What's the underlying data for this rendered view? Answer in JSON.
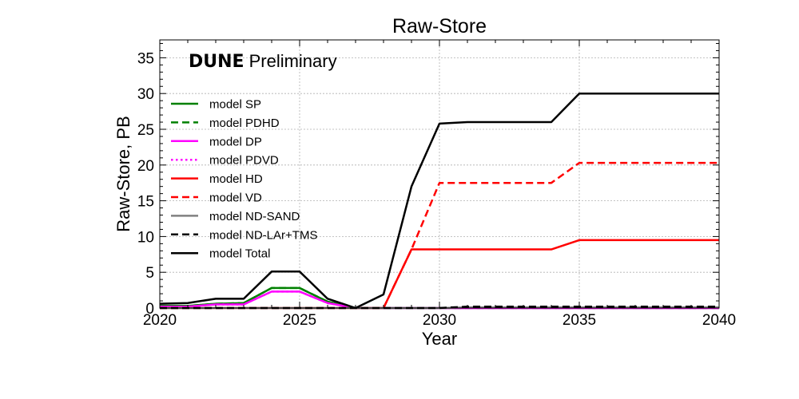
{
  "chart_data": {
    "type": "line",
    "title": "Raw-Store",
    "xlabel": "Year",
    "ylabel": "Raw-Store, PB",
    "watermark_bold": "DUNE",
    "watermark_text": "Preliminary",
    "xlim": [
      2020,
      2040
    ],
    "ylim": [
      0,
      37.5
    ],
    "x_ticks": [
      2020,
      2025,
      2030,
      2035,
      2040
    ],
    "y_ticks": [
      0,
      5,
      10,
      15,
      20,
      25,
      30,
      35
    ],
    "grid": true,
    "legend_position": "upper-left",
    "x": [
      2020,
      2021,
      2022,
      2023,
      2024,
      2025,
      2026,
      2027,
      2028,
      2029,
      2030,
      2031,
      2032,
      2033,
      2034,
      2035,
      2036,
      2037,
      2038,
      2039,
      2040
    ],
    "series": [
      {
        "name": "model SP",
        "color": "#008000",
        "dash": "solid",
        "values": [
          0.3,
          0.3,
          0.6,
          0.7,
          2.8,
          2.8,
          0.9,
          0,
          0,
          0,
          0,
          0,
          0,
          0,
          0,
          0,
          0,
          0,
          0,
          0,
          0
        ]
      },
      {
        "name": "model PDHD",
        "color": "#008000",
        "dash": "dashed",
        "values": [
          0.3,
          0.3,
          0.6,
          0.7,
          2.8,
          2.8,
          0.9,
          0,
          0,
          0,
          0,
          0,
          0,
          0,
          0,
          0,
          0,
          0,
          0,
          0,
          0
        ]
      },
      {
        "name": "model DP",
        "color": "#ff00ff",
        "dash": "solid",
        "values": [
          0.2,
          0.2,
          0.5,
          0.5,
          2.3,
          2.3,
          0.7,
          0,
          0,
          0,
          0,
          0,
          0,
          0,
          0,
          0,
          0,
          0,
          0,
          0,
          0
        ]
      },
      {
        "name": "model PDVD",
        "color": "#ff00ff",
        "dash": "dotted",
        "values": [
          0.2,
          0.2,
          0.5,
          0.5,
          2.3,
          2.3,
          0.7,
          0,
          0,
          0,
          0,
          0,
          0,
          0,
          0,
          0,
          0,
          0,
          0,
          0,
          0
        ]
      },
      {
        "name": "model HD",
        "color": "#ff0000",
        "dash": "solid",
        "values": [
          0,
          0,
          0,
          0,
          0,
          0,
          0,
          0,
          0,
          8.2,
          8.2,
          8.2,
          8.2,
          8.2,
          8.2,
          9.5,
          9.5,
          9.5,
          9.5,
          9.5,
          9.5
        ]
      },
      {
        "name": "model VD",
        "color": "#ff0000",
        "dash": "dashed",
        "values": [
          0,
          0,
          0,
          0,
          0,
          0,
          0,
          0,
          0,
          8.2,
          17.5,
          17.5,
          17.5,
          17.5,
          17.5,
          20.3,
          20.3,
          20.3,
          20.3,
          20.3,
          20.3
        ]
      },
      {
        "name": "model ND-SAND",
        "color": "#808080",
        "dash": "solid",
        "values": [
          0,
          0,
          0,
          0,
          0,
          0,
          0,
          0,
          0,
          0,
          0,
          0.1,
          0.1,
          0.1,
          0.1,
          0.1,
          0.1,
          0.1,
          0.1,
          0.1,
          0.1
        ]
      },
      {
        "name": "model ND-LAr+TMS",
        "color": "#000000",
        "dash": "dashed",
        "values": [
          0,
          0,
          0,
          0,
          0,
          0,
          0,
          0,
          0,
          0,
          0,
          0.2,
          0.2,
          0.2,
          0.2,
          0.2,
          0.2,
          0.2,
          0.2,
          0.2,
          0.2
        ]
      },
      {
        "name": "model Total",
        "color": "#000000",
        "dash": "solid",
        "values": [
          0.6,
          0.7,
          1.3,
          1.3,
          5.1,
          5.1,
          1.3,
          0,
          1.9,
          17.0,
          25.8,
          26.0,
          26.0,
          26.0,
          26.0,
          30.0,
          30.0,
          30.0,
          30.0,
          30.0,
          30.0
        ]
      }
    ]
  }
}
